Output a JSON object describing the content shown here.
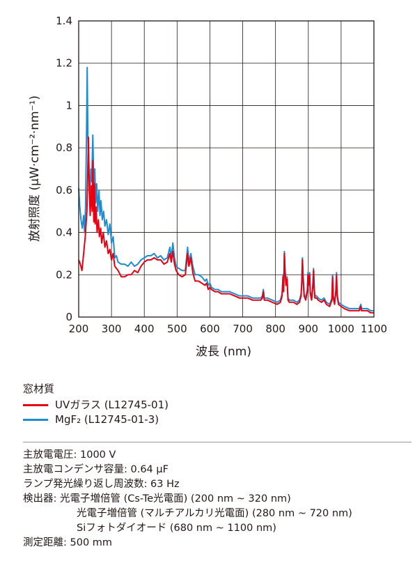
{
  "chart_data": {
    "type": "line",
    "xlabel": "波長 (nm)",
    "ylabel": "放射照度 (μW·cm⁻²·nm⁻¹)",
    "xlim": [
      200,
      1100
    ],
    "ylim": [
      0,
      1.4
    ],
    "x_ticks": [
      "200",
      "300",
      "400",
      "500",
      "600",
      "700",
      "800",
      "900",
      "1000",
      "1100"
    ],
    "y_ticks": [
      "0",
      "0.2",
      "0.4",
      "0.6",
      "0.8",
      "1",
      "1.2",
      "1.4"
    ],
    "grid": true,
    "series": [
      {
        "name": "UVガラス (L12745-01)",
        "color": "#e60012",
        "points": [
          [
            200,
            0.27
          ],
          [
            205,
            0.25
          ],
          [
            210,
            0.22
          ],
          [
            215,
            0.3
          ],
          [
            220,
            0.38
          ],
          [
            225,
            0.5
          ],
          [
            228,
            0.72
          ],
          [
            230,
            0.85
          ],
          [
            232,
            0.6
          ],
          [
            235,
            0.48
          ],
          [
            238,
            0.62
          ],
          [
            241,
            0.5
          ],
          [
            243,
            0.74
          ],
          [
            246,
            0.45
          ],
          [
            248,
            0.63
          ],
          [
            250,
            0.44
          ],
          [
            253,
            0.52
          ],
          [
            256,
            0.4
          ],
          [
            260,
            0.46
          ],
          [
            263,
            0.38
          ],
          [
            267,
            0.42
          ],
          [
            270,
            0.35
          ],
          [
            275,
            0.4
          ],
          [
            280,
            0.33
          ],
          [
            285,
            0.36
          ],
          [
            290,
            0.3
          ],
          [
            295,
            0.32
          ],
          [
            300,
            0.27
          ],
          [
            305,
            0.3
          ],
          [
            310,
            0.24
          ],
          [
            320,
            0.22
          ],
          [
            330,
            0.19
          ],
          [
            340,
            0.19
          ],
          [
            350,
            0.2
          ],
          [
            360,
            0.2
          ],
          [
            370,
            0.22
          ],
          [
            380,
            0.21
          ],
          [
            390,
            0.24
          ],
          [
            400,
            0.26
          ],
          [
            410,
            0.27
          ],
          [
            420,
            0.27
          ],
          [
            430,
            0.28
          ],
          [
            440,
            0.27
          ],
          [
            450,
            0.27
          ],
          [
            460,
            0.25
          ],
          [
            470,
            0.26
          ],
          [
            478,
            0.3
          ],
          [
            482,
            0.26
          ],
          [
            487,
            0.31
          ],
          [
            492,
            0.25
          ],
          [
            497,
            0.22
          ],
          [
            505,
            0.2
          ],
          [
            515,
            0.19
          ],
          [
            525,
            0.2
          ],
          [
            532,
            0.3
          ],
          [
            536,
            0.24
          ],
          [
            542,
            0.28
          ],
          [
            548,
            0.21
          ],
          [
            555,
            0.17
          ],
          [
            565,
            0.17
          ],
          [
            575,
            0.16
          ],
          [
            585,
            0.15
          ],
          [
            590,
            0.16
          ],
          [
            595,
            0.13
          ],
          [
            600,
            0.14
          ],
          [
            605,
            0.13
          ],
          [
            615,
            0.12
          ],
          [
            625,
            0.12
          ],
          [
            635,
            0.11
          ],
          [
            645,
            0.11
          ],
          [
            660,
            0.11
          ],
          [
            675,
            0.1
          ],
          [
            690,
            0.09
          ],
          [
            700,
            0.09
          ],
          [
            715,
            0.09
          ],
          [
            730,
            0.08
          ],
          [
            745,
            0.08
          ],
          [
            755,
            0.08
          ],
          [
            760,
            0.09
          ],
          [
            763,
            0.12
          ],
          [
            766,
            0.08
          ],
          [
            775,
            0.08
          ],
          [
            790,
            0.07
          ],
          [
            805,
            0.06
          ],
          [
            815,
            0.07
          ],
          [
            820,
            0.1
          ],
          [
            823,
            0.19
          ],
          [
            825,
            0.12
          ],
          [
            827,
            0.3
          ],
          [
            829,
            0.22
          ],
          [
            832,
            0.15
          ],
          [
            835,
            0.18
          ],
          [
            838,
            0.08
          ],
          [
            842,
            0.07
          ],
          [
            855,
            0.07
          ],
          [
            865,
            0.06
          ],
          [
            873,
            0.07
          ],
          [
            878,
            0.1
          ],
          [
            880,
            0.16
          ],
          [
            882,
            0.27
          ],
          [
            884,
            0.19
          ],
          [
            887,
            0.1
          ],
          [
            892,
            0.08
          ],
          [
            897,
            0.12
          ],
          [
            899,
            0.2
          ],
          [
            901,
            0.15
          ],
          [
            904,
            0.2
          ],
          [
            906,
            0.11
          ],
          [
            910,
            0.08
          ],
          [
            914,
            0.15
          ],
          [
            916,
            0.22
          ],
          [
            918,
            0.13
          ],
          [
            920,
            0.09
          ],
          [
            925,
            0.09
          ],
          [
            930,
            0.08
          ],
          [
            940,
            0.07
          ],
          [
            948,
            0.08
          ],
          [
            955,
            0.06
          ],
          [
            965,
            0.05
          ],
          [
            972,
            0.08
          ],
          [
            974,
            0.19
          ],
          [
            976,
            0.09
          ],
          [
            980,
            0.06
          ],
          [
            984,
            0.12
          ],
          [
            986,
            0.2
          ],
          [
            988,
            0.1
          ],
          [
            992,
            0.06
          ],
          [
            1000,
            0.05
          ],
          [
            1010,
            0.04
          ],
          [
            1025,
            0.03
          ],
          [
            1040,
            0.03
          ],
          [
            1055,
            0.03
          ],
          [
            1060,
            0.05
          ],
          [
            1062,
            0.03
          ],
          [
            1070,
            0.03
          ],
          [
            1080,
            0.03
          ],
          [
            1090,
            0.02
          ],
          [
            1100,
            0.02
          ]
        ]
      },
      {
        "name": "MgF₂ (L12745-01-3)",
        "color": "#1f8ccf",
        "points": [
          [
            200,
            0.61
          ],
          [
            203,
            0.53
          ],
          [
            207,
            0.46
          ],
          [
            211,
            0.42
          ],
          [
            215,
            0.48
          ],
          [
            218,
            0.4
          ],
          [
            221,
            0.53
          ],
          [
            224,
            0.88
          ],
          [
            226,
            1.18
          ],
          [
            228,
            0.85
          ],
          [
            231,
            0.72
          ],
          [
            234,
            0.55
          ],
          [
            237,
            0.7
          ],
          [
            240,
            0.64
          ],
          [
            243,
            0.86
          ],
          [
            246,
            0.63
          ],
          [
            249,
            0.7
          ],
          [
            252,
            0.54
          ],
          [
            255,
            0.63
          ],
          [
            258,
            0.5
          ],
          [
            262,
            0.6
          ],
          [
            265,
            0.48
          ],
          [
            268,
            0.55
          ],
          [
            272,
            0.46
          ],
          [
            276,
            0.5
          ],
          [
            280,
            0.43
          ],
          [
            285,
            0.46
          ],
          [
            290,
            0.39
          ],
          [
            295,
            0.44
          ],
          [
            300,
            0.35
          ],
          [
            305,
            0.38
          ],
          [
            310,
            0.28
          ],
          [
            315,
            0.29
          ],
          [
            320,
            0.26
          ],
          [
            330,
            0.25
          ],
          [
            340,
            0.25
          ],
          [
            350,
            0.24
          ],
          [
            360,
            0.26
          ],
          [
            370,
            0.24
          ],
          [
            380,
            0.25
          ],
          [
            390,
            0.27
          ],
          [
            400,
            0.28
          ],
          [
            410,
            0.29
          ],
          [
            420,
            0.29
          ],
          [
            430,
            0.3
          ],
          [
            440,
            0.28
          ],
          [
            450,
            0.29
          ],
          [
            460,
            0.27
          ],
          [
            470,
            0.28
          ],
          [
            478,
            0.33
          ],
          [
            482,
            0.28
          ],
          [
            487,
            0.35
          ],
          [
            492,
            0.28
          ],
          [
            497,
            0.24
          ],
          [
            505,
            0.23
          ],
          [
            515,
            0.22
          ],
          [
            525,
            0.22
          ],
          [
            532,
            0.33
          ],
          [
            536,
            0.26
          ],
          [
            542,
            0.3
          ],
          [
            548,
            0.24
          ],
          [
            555,
            0.2
          ],
          [
            565,
            0.2
          ],
          [
            575,
            0.19
          ],
          [
            585,
            0.17
          ],
          [
            590,
            0.18
          ],
          [
            595,
            0.15
          ],
          [
            600,
            0.16
          ],
          [
            605,
            0.14
          ],
          [
            615,
            0.13
          ],
          [
            625,
            0.13
          ],
          [
            635,
            0.12
          ],
          [
            645,
            0.12
          ],
          [
            660,
            0.12
          ],
          [
            675,
            0.11
          ],
          [
            690,
            0.1
          ],
          [
            700,
            0.1
          ],
          [
            715,
            0.1
          ],
          [
            730,
            0.09
          ],
          [
            745,
            0.09
          ],
          [
            755,
            0.09
          ],
          [
            760,
            0.1
          ],
          [
            763,
            0.13
          ],
          [
            766,
            0.09
          ],
          [
            775,
            0.09
          ],
          [
            790,
            0.08
          ],
          [
            805,
            0.07
          ],
          [
            815,
            0.08
          ],
          [
            820,
            0.11
          ],
          [
            823,
            0.2
          ],
          [
            825,
            0.13
          ],
          [
            827,
            0.31
          ],
          [
            829,
            0.23
          ],
          [
            832,
            0.16
          ],
          [
            835,
            0.19
          ],
          [
            838,
            0.09
          ],
          [
            842,
            0.08
          ],
          [
            855,
            0.08
          ],
          [
            865,
            0.07
          ],
          [
            873,
            0.08
          ],
          [
            878,
            0.11
          ],
          [
            880,
            0.17
          ],
          [
            882,
            0.28
          ],
          [
            884,
            0.2
          ],
          [
            887,
            0.11
          ],
          [
            892,
            0.09
          ],
          [
            897,
            0.13
          ],
          [
            899,
            0.21
          ],
          [
            901,
            0.16
          ],
          [
            904,
            0.21
          ],
          [
            906,
            0.12
          ],
          [
            910,
            0.09
          ],
          [
            914,
            0.16
          ],
          [
            916,
            0.23
          ],
          [
            918,
            0.14
          ],
          [
            920,
            0.1
          ],
          [
            925,
            0.1
          ],
          [
            930,
            0.09
          ],
          [
            940,
            0.08
          ],
          [
            948,
            0.09
          ],
          [
            955,
            0.07
          ],
          [
            965,
            0.06
          ],
          [
            972,
            0.09
          ],
          [
            974,
            0.2
          ],
          [
            976,
            0.1
          ],
          [
            980,
            0.07
          ],
          [
            984,
            0.13
          ],
          [
            986,
            0.21
          ],
          [
            988,
            0.11
          ],
          [
            992,
            0.07
          ],
          [
            1000,
            0.06
          ],
          [
            1010,
            0.05
          ],
          [
            1025,
            0.04
          ],
          [
            1040,
            0.04
          ],
          [
            1055,
            0.04
          ],
          [
            1060,
            0.06
          ],
          [
            1062,
            0.04
          ],
          [
            1070,
            0.04
          ],
          [
            1080,
            0.04
          ],
          [
            1090,
            0.03
          ],
          [
            1100,
            0.03
          ]
        ]
      }
    ]
  },
  "legend": {
    "title": "窓材質",
    "items": [
      {
        "label": "UVガラス (L12745-01)",
        "color": "#e60012"
      },
      {
        "label": "MgF₂ (L12745-01-3)",
        "color": "#1f8ccf"
      }
    ]
  },
  "conditions": [
    "主放電電圧: 1000 V",
    "主放電コンデンサ容量: 0.64 μF",
    "ランプ発光繰り返し周波数: 63 Hz",
    "検出器: 光電子増倍管 (Cs-Te光電面) (200 nm ~ 320 nm)",
    "光電子増倍管 (マルチアルカリ光電面) (280 nm ~ 720 nm)",
    "Siフォトダイオード (680 nm ~ 1100 nm)",
    "測定距離: 500 mm"
  ]
}
